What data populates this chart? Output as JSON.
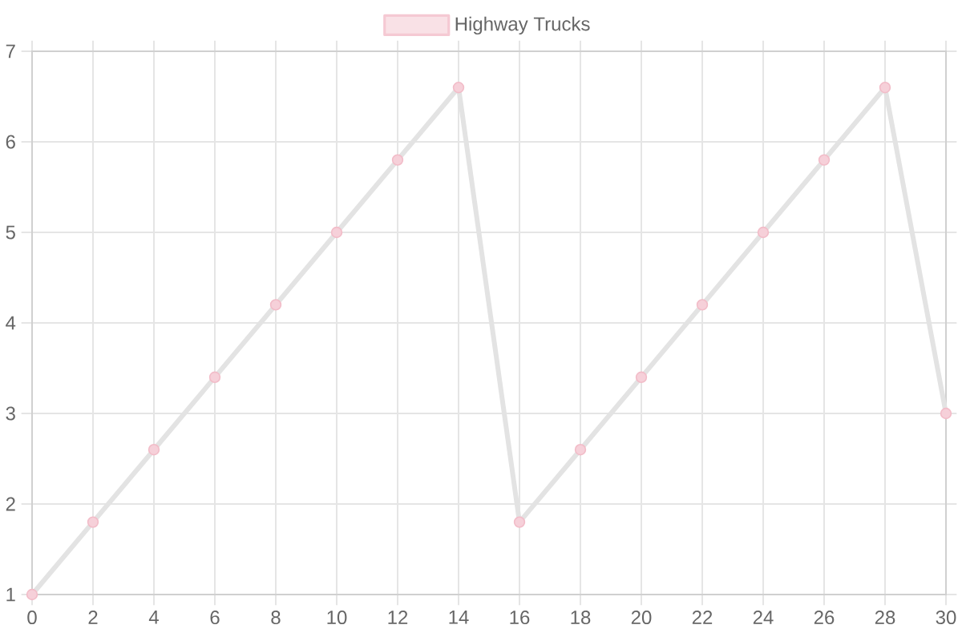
{
  "chart_data": {
    "type": "line",
    "x": [
      0,
      2,
      4,
      6,
      8,
      10,
      12,
      14,
      16,
      18,
      20,
      22,
      24,
      26,
      28,
      30
    ],
    "series": [
      {
        "name": "Highway Trucks",
        "color": "#e3e3e3",
        "colors": [
          "#f2bcc8",
          "#f2bcc8",
          "#f2bcc8",
          "#f2bcc8",
          "#f2bcc8",
          "#f2bcc8",
          "#f2bcc8",
          "#f2bcc8",
          "#f2bcc8",
          "#f2bcc8",
          "#f2bcc8",
          "#f2bcc8",
          "#f2bcc8",
          "#f2bcc8",
          "#f2bcc8",
          "#f2bcc8"
        ],
        "values": [
          1,
          1.8,
          2.6,
          3.4,
          4.2,
          5.0,
          5.8,
          6.6,
          1.8,
          2.6,
          3.4,
          4.2,
          5.0,
          5.8,
          6.6,
          3.0
        ]
      }
    ],
    "xlim": [
      0,
      30
    ],
    "xticks": [
      0,
      2,
      4,
      6,
      8,
      10,
      12,
      14,
      16,
      18,
      20,
      22,
      24,
      26,
      28,
      30
    ],
    "ylim": [
      1,
      7
    ],
    "yticks": [
      1,
      2,
      3,
      4,
      5,
      6,
      7
    ],
    "grid": true,
    "legend": "top",
    "marker": "circle",
    "line_style": "solid"
  }
}
